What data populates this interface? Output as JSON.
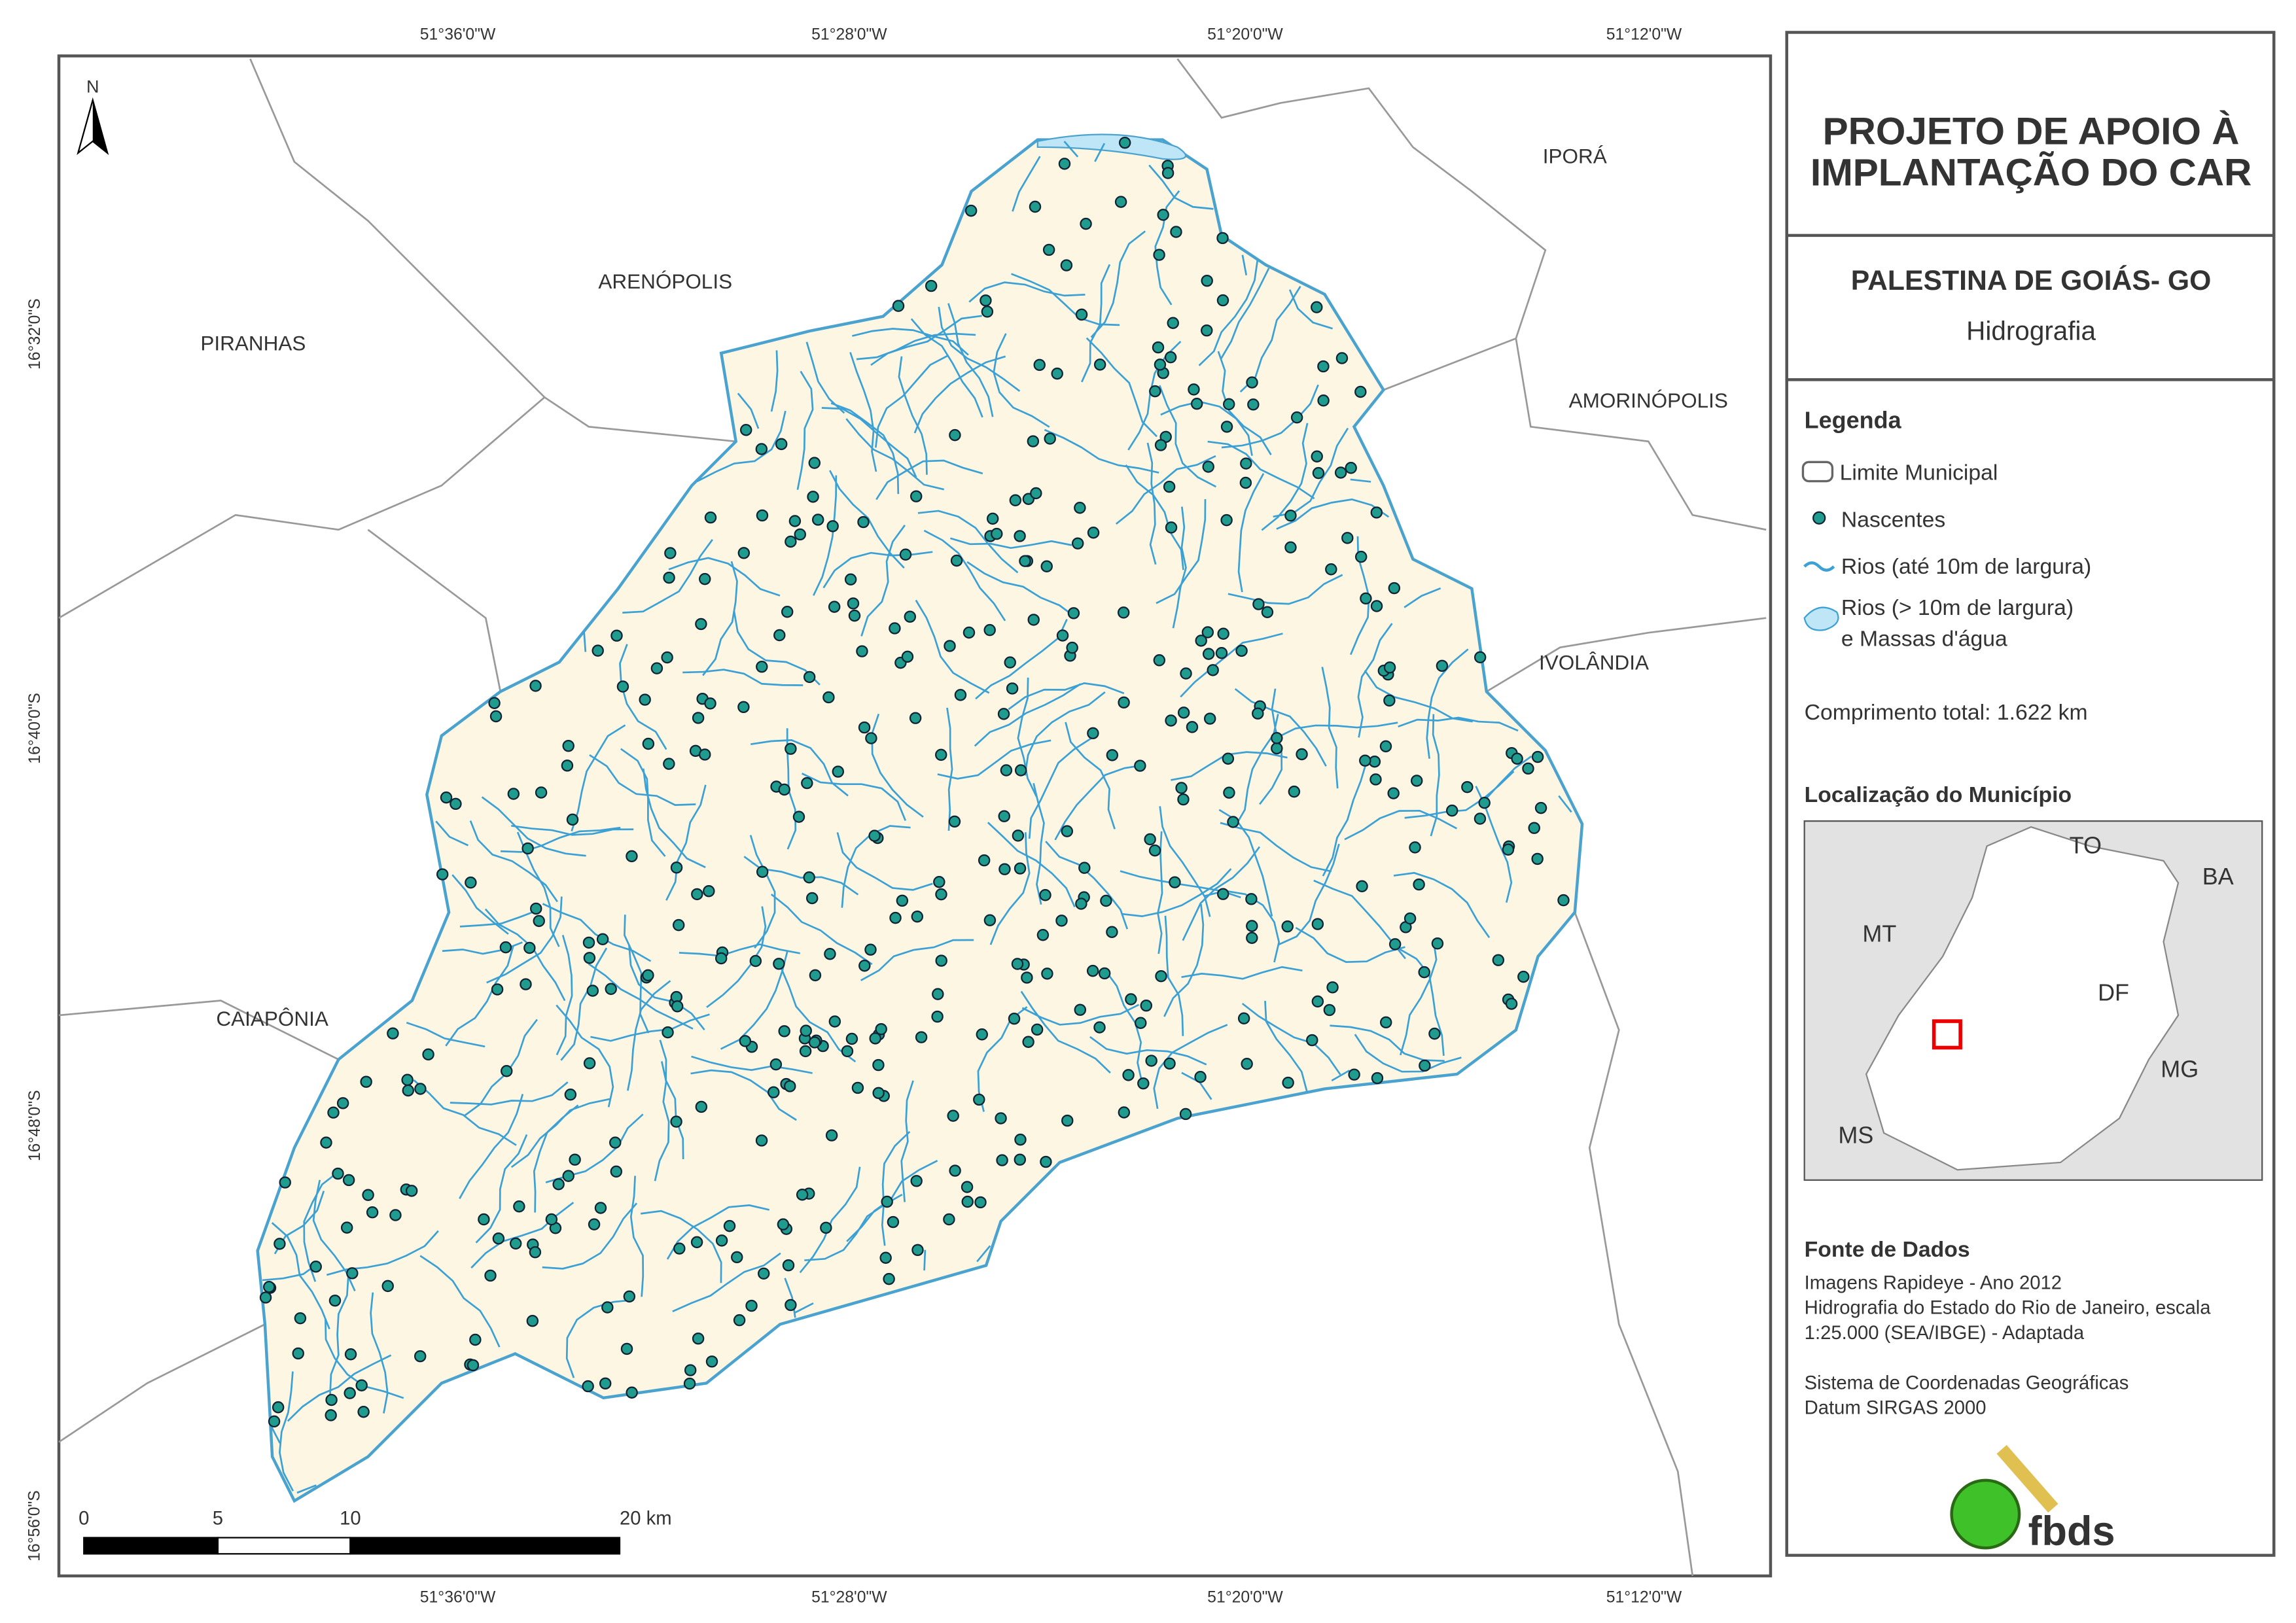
{
  "map": {
    "top_coords": [
      "51°36'0\"W",
      "51°28'0\"W",
      "51°20'0\"W",
      "51°12'0\"W"
    ],
    "bottom_coords": [
      "51°36'0\"W",
      "51°28'0\"W",
      "51°20'0\"W",
      "51°12'0\"W"
    ],
    "left_coords": [
      "16°32'0\"S",
      "16°40'0\"S",
      "16°48'0\"S",
      "16°56'0\"S"
    ],
    "north": "N",
    "places": [
      "ARENÓPOLIS",
      "PIRANHAS",
      "IPORÁ",
      "AMORINÓPOLIS",
      "IVOLÂNDIA",
      "CAIAPÔNIA"
    ],
    "scale_labels": [
      "0",
      "5",
      "10",
      "20 km"
    ]
  },
  "panel": {
    "title": [
      "PROJETO DE APOIO À",
      "IMPLANTAÇÃO DO CAR"
    ],
    "municipality": "PALESTINA DE GOIÁS- GO",
    "theme": "Hidrografia",
    "legend": {
      "title": "Legenda",
      "items": [
        "Limite Municipal",
        "Nascentes",
        "Rios (até 10m de largura)",
        "Rios (> 10m de largura)",
        "e Massas d'água"
      ]
    },
    "length": "Comprimento total: 1.622 km",
    "location_title": "Localização do Município",
    "inset_labels": [
      "TO",
      "BA",
      "MT",
      "DF",
      "MG",
      "MS"
    ],
    "source": {
      "title": "Fonte de Dados",
      "lines": [
        "Imagens Rapideye - Ano 2012",
        "Hidrografia do Estado do Rio de Janeiro, escala",
        "1:25.000 (SEA/IBGE) - Adaptada",
        "",
        "Sistema de Coordenadas Geográficas",
        "Datum SIRGAS 2000"
      ]
    },
    "logo": "fbds"
  }
}
